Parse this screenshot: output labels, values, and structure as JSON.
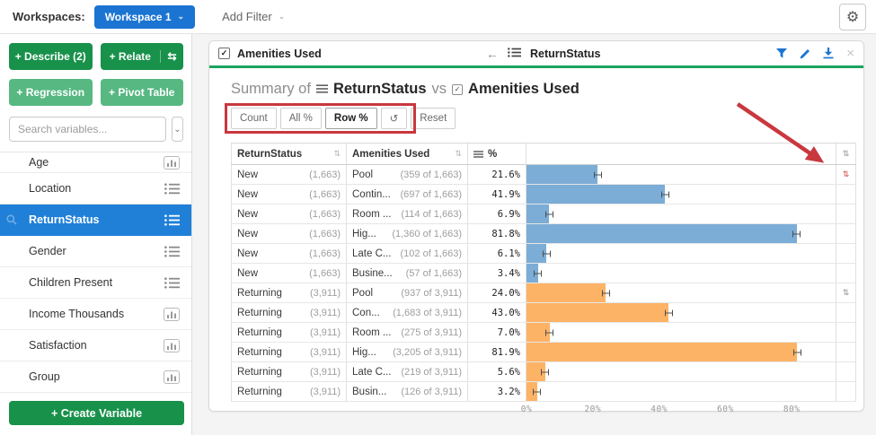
{
  "colors": {
    "accent_blue": "#1b74d2",
    "selected_blue": "#2080d8",
    "dark_green": "#18914b",
    "light_green": "#57b882",
    "panel_green": "#1ba45f",
    "bar_new": "#7badd7",
    "bar_returning": "#fdb366",
    "annotation_red": "#c9383e"
  },
  "icons": {
    "gear": "⚙",
    "chevron_down": "⌄",
    "swap": "⇆",
    "back_arrow": "←",
    "close": "×",
    "refresh": "↺",
    "sort": "⇅",
    "check": "✓"
  },
  "topbar": {
    "workspaces_label": "Workspaces:",
    "workspace_button": "Workspace 1",
    "add_filter": "Add Filter"
  },
  "sidebar": {
    "describe": "+ Describe (2)",
    "relate": "+ Relate",
    "regression": "+ Regression",
    "pivot_table": "+ Pivot Table",
    "search_placeholder": "Search variables...",
    "create_variable": "+ Create Variable",
    "variables": [
      {
        "label": "Age",
        "type": "histogram",
        "selected": false
      },
      {
        "label": "Location",
        "type": "list",
        "selected": false
      },
      {
        "label": "ReturnStatus",
        "type": "list",
        "selected": true
      },
      {
        "label": "Gender",
        "type": "list",
        "selected": false
      },
      {
        "label": "Children Present",
        "type": "list",
        "selected": false
      },
      {
        "label": "Income Thousands",
        "type": "histogram",
        "selected": false
      },
      {
        "label": "Satisfaction",
        "type": "histogram",
        "selected": false
      },
      {
        "label": "Group",
        "type": "histogram",
        "selected": false
      }
    ]
  },
  "panel": {
    "card_header": {
      "checkbox_label": "Amenities Used",
      "linked_variable": "ReturnStatus"
    },
    "title": {
      "prefix": "Summary of",
      "variable1": "ReturnStatus",
      "connector": "vs",
      "variable2": "Amenities Used"
    },
    "toolbar": {
      "count": "Count",
      "all_pct": "All %",
      "row_pct": "Row %",
      "active": "Row %",
      "reset": "Reset"
    },
    "table": {
      "col1_header": "ReturnStatus",
      "col2_header": "Amenities Used",
      "col3_header": "%",
      "axis_max": 93.5,
      "axis": [
        {
          "label": "0%",
          "value": 0
        },
        {
          "label": "20%",
          "value": 20
        },
        {
          "label": "40%",
          "value": 40
        },
        {
          "label": "60%",
          "value": 60
        },
        {
          "label": "80%",
          "value": 80
        }
      ],
      "rows": [
        {
          "group": "New",
          "group_count": "(1,663)",
          "amenity": "Pool",
          "amenity_count": "(359 of 1,663)",
          "pct_label": "21.6%",
          "pct": 21.6,
          "series": "new",
          "sort_icon": "red"
        },
        {
          "group": "New",
          "group_count": "(1,663)",
          "amenity": "Contin...",
          "amenity_count": "(697 of 1,663)",
          "pct_label": "41.9%",
          "pct": 41.9,
          "series": "new",
          "sort_icon": null
        },
        {
          "group": "New",
          "group_count": "(1,663)",
          "amenity": "Room ...",
          "amenity_count": "(114 of 1,663)",
          "pct_label": "6.9%",
          "pct": 6.9,
          "series": "new",
          "sort_icon": null
        },
        {
          "group": "New",
          "group_count": "(1,663)",
          "amenity": "Hig...",
          "amenity_count": "(1,360 of 1,663)",
          "pct_label": "81.8%",
          "pct": 81.8,
          "series": "new",
          "sort_icon": null
        },
        {
          "group": "New",
          "group_count": "(1,663)",
          "amenity": "Late C...",
          "amenity_count": "(102 of 1,663)",
          "pct_label": "6.1%",
          "pct": 6.1,
          "series": "new",
          "sort_icon": null
        },
        {
          "group": "New",
          "group_count": "(1,663)",
          "amenity": "Busine...",
          "amenity_count": "(57 of 1,663)",
          "pct_label": "3.4%",
          "pct": 3.4,
          "series": "new",
          "sort_icon": null
        },
        {
          "group": "Returning",
          "group_count": "(3,911)",
          "amenity": "Pool",
          "amenity_count": "(937 of 3,911)",
          "pct_label": "24.0%",
          "pct": 24.0,
          "series": "returning",
          "sort_icon": "gray"
        },
        {
          "group": "Returning",
          "group_count": "(3,911)",
          "amenity": "Con...",
          "amenity_count": "(1,683 of 3,911)",
          "pct_label": "43.0%",
          "pct": 43.0,
          "series": "returning",
          "sort_icon": null
        },
        {
          "group": "Returning",
          "group_count": "(3,911)",
          "amenity": "Room ...",
          "amenity_count": "(275 of 3,911)",
          "pct_label": "7.0%",
          "pct": 7.0,
          "series": "returning",
          "sort_icon": null
        },
        {
          "group": "Returning",
          "group_count": "(3,911)",
          "amenity": "Hig...",
          "amenity_count": "(3,205 of 3,911)",
          "pct_label": "81.9%",
          "pct": 81.9,
          "series": "returning",
          "sort_icon": null
        },
        {
          "group": "Returning",
          "group_count": "(3,911)",
          "amenity": "Late C...",
          "amenity_count": "(219 of 3,911)",
          "pct_label": "5.6%",
          "pct": 5.6,
          "series": "returning",
          "sort_icon": null
        },
        {
          "group": "Returning",
          "group_count": "(3,911)",
          "amenity": "Busin...",
          "amenity_count": "(126 of 3,911)",
          "pct_label": "3.2%",
          "pct": 3.2,
          "series": "returning",
          "sort_icon": null
        }
      ]
    }
  }
}
